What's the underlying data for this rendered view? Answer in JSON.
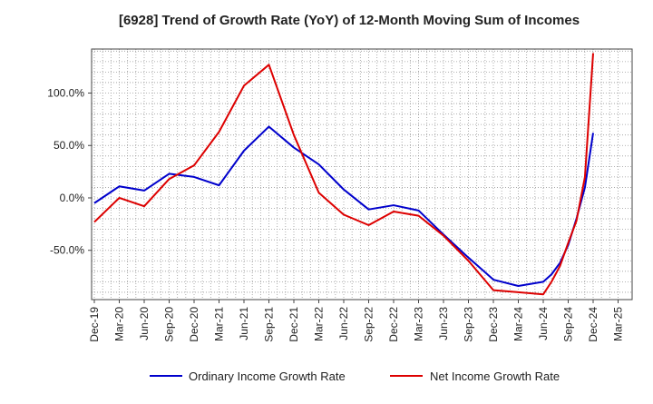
{
  "chart_data": {
    "type": "line",
    "title": "[6928]  Trend of Growth Rate (YoY) of 12-Month Moving Sum of Incomes",
    "xlabel": "",
    "ylabel": "",
    "categories": [
      "Dec-19",
      "Mar-20",
      "Jun-20",
      "Sep-20",
      "Dec-20",
      "Mar-21",
      "Jun-21",
      "Sep-21",
      "Dec-21",
      "Mar-22",
      "Jun-22",
      "Sep-22",
      "Dec-22",
      "Mar-23",
      "Jun-23",
      "Sep-23",
      "Dec-23",
      "Mar-24",
      "Jun-24",
      "Sep-24",
      "Dec-24",
      "Mar-25"
    ],
    "yticks": [
      {
        "value": 100,
        "label": "100.0%"
      },
      {
        "value": 50,
        "label": "50.0%"
      },
      {
        "value": 0,
        "label": "0.0%"
      },
      {
        "value": -50,
        "label": "-50.0%"
      }
    ],
    "ylim": [
      -97,
      142
    ],
    "grid": true,
    "legend_position": "bottom",
    "series": [
      {
        "name": "Ordinary Income Growth Rate",
        "color": "#0000cc",
        "points": [
          [
            0,
            -5
          ],
          [
            1,
            11
          ],
          [
            2,
            7
          ],
          [
            3,
            23
          ],
          [
            4,
            20
          ],
          [
            5,
            12
          ],
          [
            6,
            45
          ],
          [
            7,
            68
          ],
          [
            8,
            48
          ],
          [
            9,
            32
          ],
          [
            10,
            8
          ],
          [
            11,
            -11
          ],
          [
            12,
            -7
          ],
          [
            13,
            -12
          ],
          [
            14,
            -35
          ],
          [
            15,
            -57
          ],
          [
            16,
            -78
          ],
          [
            17,
            -84
          ],
          [
            18,
            -80
          ],
          [
            18.33,
            -73
          ],
          [
            18.67,
            -62
          ],
          [
            19,
            -45
          ],
          [
            19.33,
            -20
          ],
          [
            19.67,
            10
          ],
          [
            20,
            62
          ]
        ]
      },
      {
        "name": "Net Income Growth Rate",
        "color": "#dd0000",
        "points": [
          [
            0,
            -23
          ],
          [
            1,
            0
          ],
          [
            2,
            -8
          ],
          [
            3,
            18
          ],
          [
            4,
            31
          ],
          [
            5,
            63
          ],
          [
            6,
            107
          ],
          [
            7,
            127
          ],
          [
            8,
            60
          ],
          [
            9,
            5
          ],
          [
            10,
            -16
          ],
          [
            11,
            -26
          ],
          [
            12,
            -13
          ],
          [
            13,
            -17
          ],
          [
            14,
            -36
          ],
          [
            15,
            -60
          ],
          [
            16,
            -88
          ],
          [
            17,
            -90
          ],
          [
            18,
            -92
          ],
          [
            18.33,
            -80
          ],
          [
            18.67,
            -65
          ],
          [
            19,
            -43
          ],
          [
            19.33,
            -22
          ],
          [
            19.67,
            20
          ],
          [
            20,
            138
          ]
        ]
      }
    ]
  }
}
